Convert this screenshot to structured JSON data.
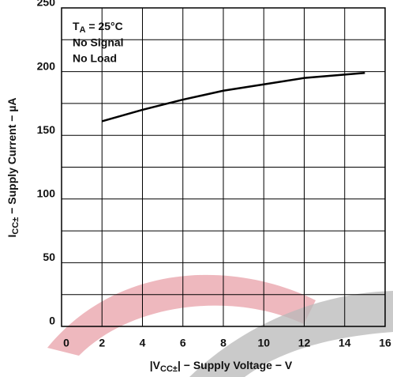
{
  "chart_data": {
    "type": "line",
    "annotation_lines": [
      [
        "T",
        "A",
        " = 25°C"
      ],
      [
        "No Signal"
      ],
      [
        "No Load"
      ]
    ],
    "xlabel": [
      "|V",
      "CC±",
      "| − Supply Voltage − V"
    ],
    "ylabel": [
      "I",
      "CC±",
      " − Supply Current − µA"
    ],
    "x": [
      2,
      4,
      6,
      8,
      10,
      12,
      15
    ],
    "series": [
      {
        "color": "#000000",
        "values": [
          161,
          170,
          178,
          185,
          190,
          195,
          199
        ]
      }
    ],
    "xlim": [
      0,
      16
    ],
    "xticks": [
      0,
      2,
      4,
      6,
      8,
      10,
      12,
      14,
      16
    ],
    "ylim": [
      0,
      250
    ],
    "yticks": [
      0,
      50,
      100,
      150,
      200,
      250
    ],
    "ygrid": [
      25,
      50,
      75,
      100,
      125,
      150,
      175,
      200,
      225
    ],
    "grid": true
  }
}
